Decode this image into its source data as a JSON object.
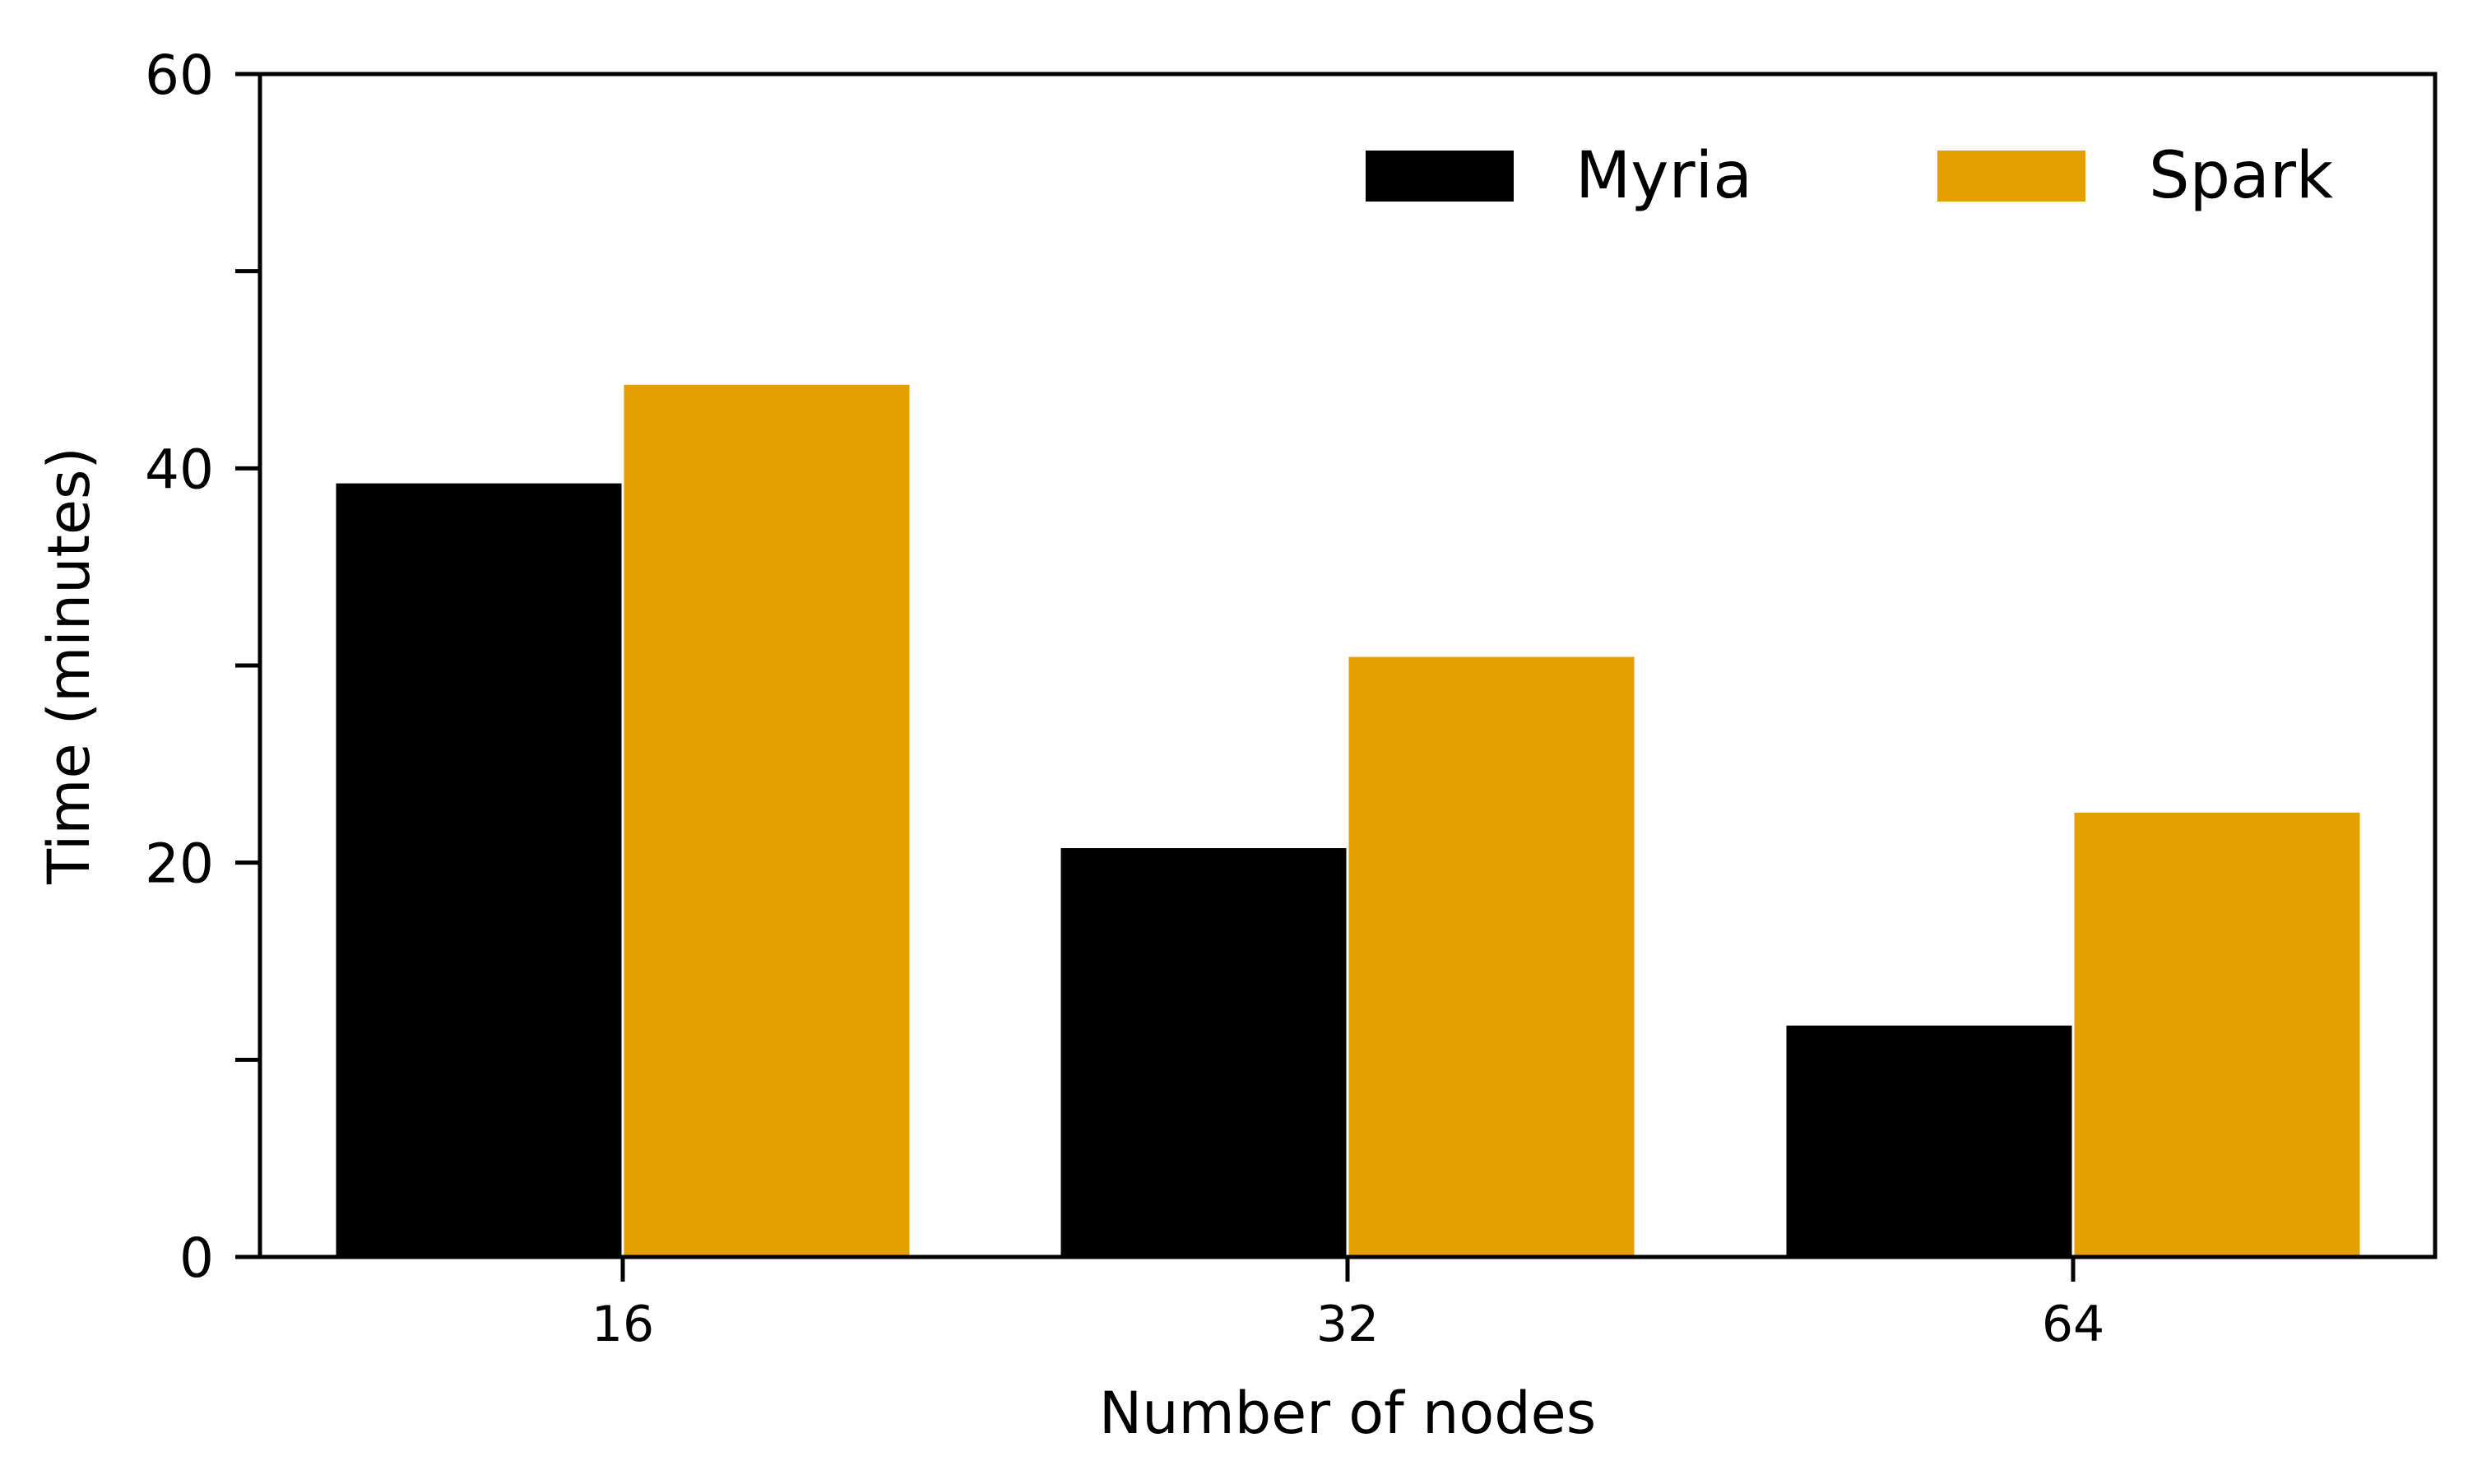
{
  "chart_data": {
    "type": "bar",
    "title": "",
    "xlabel": "Number of nodes",
    "ylabel": "Time (minutes)",
    "categories": [
      "16",
      "32",
      "64"
    ],
    "series": [
      {
        "name": "Myria",
        "values": [
          39.3,
          20.8,
          11.8
        ],
        "color": "#000000"
      },
      {
        "name": "Spark",
        "values": [
          44.3,
          30.5,
          22.6
        ],
        "color": "#e49f00"
      }
    ],
    "ylim": [
      0,
      60
    ],
    "yticks_major": [
      0,
      20,
      40,
      60
    ],
    "yticks_minor": [
      10,
      30,
      50
    ],
    "grid": false,
    "legend": "top-right"
  }
}
